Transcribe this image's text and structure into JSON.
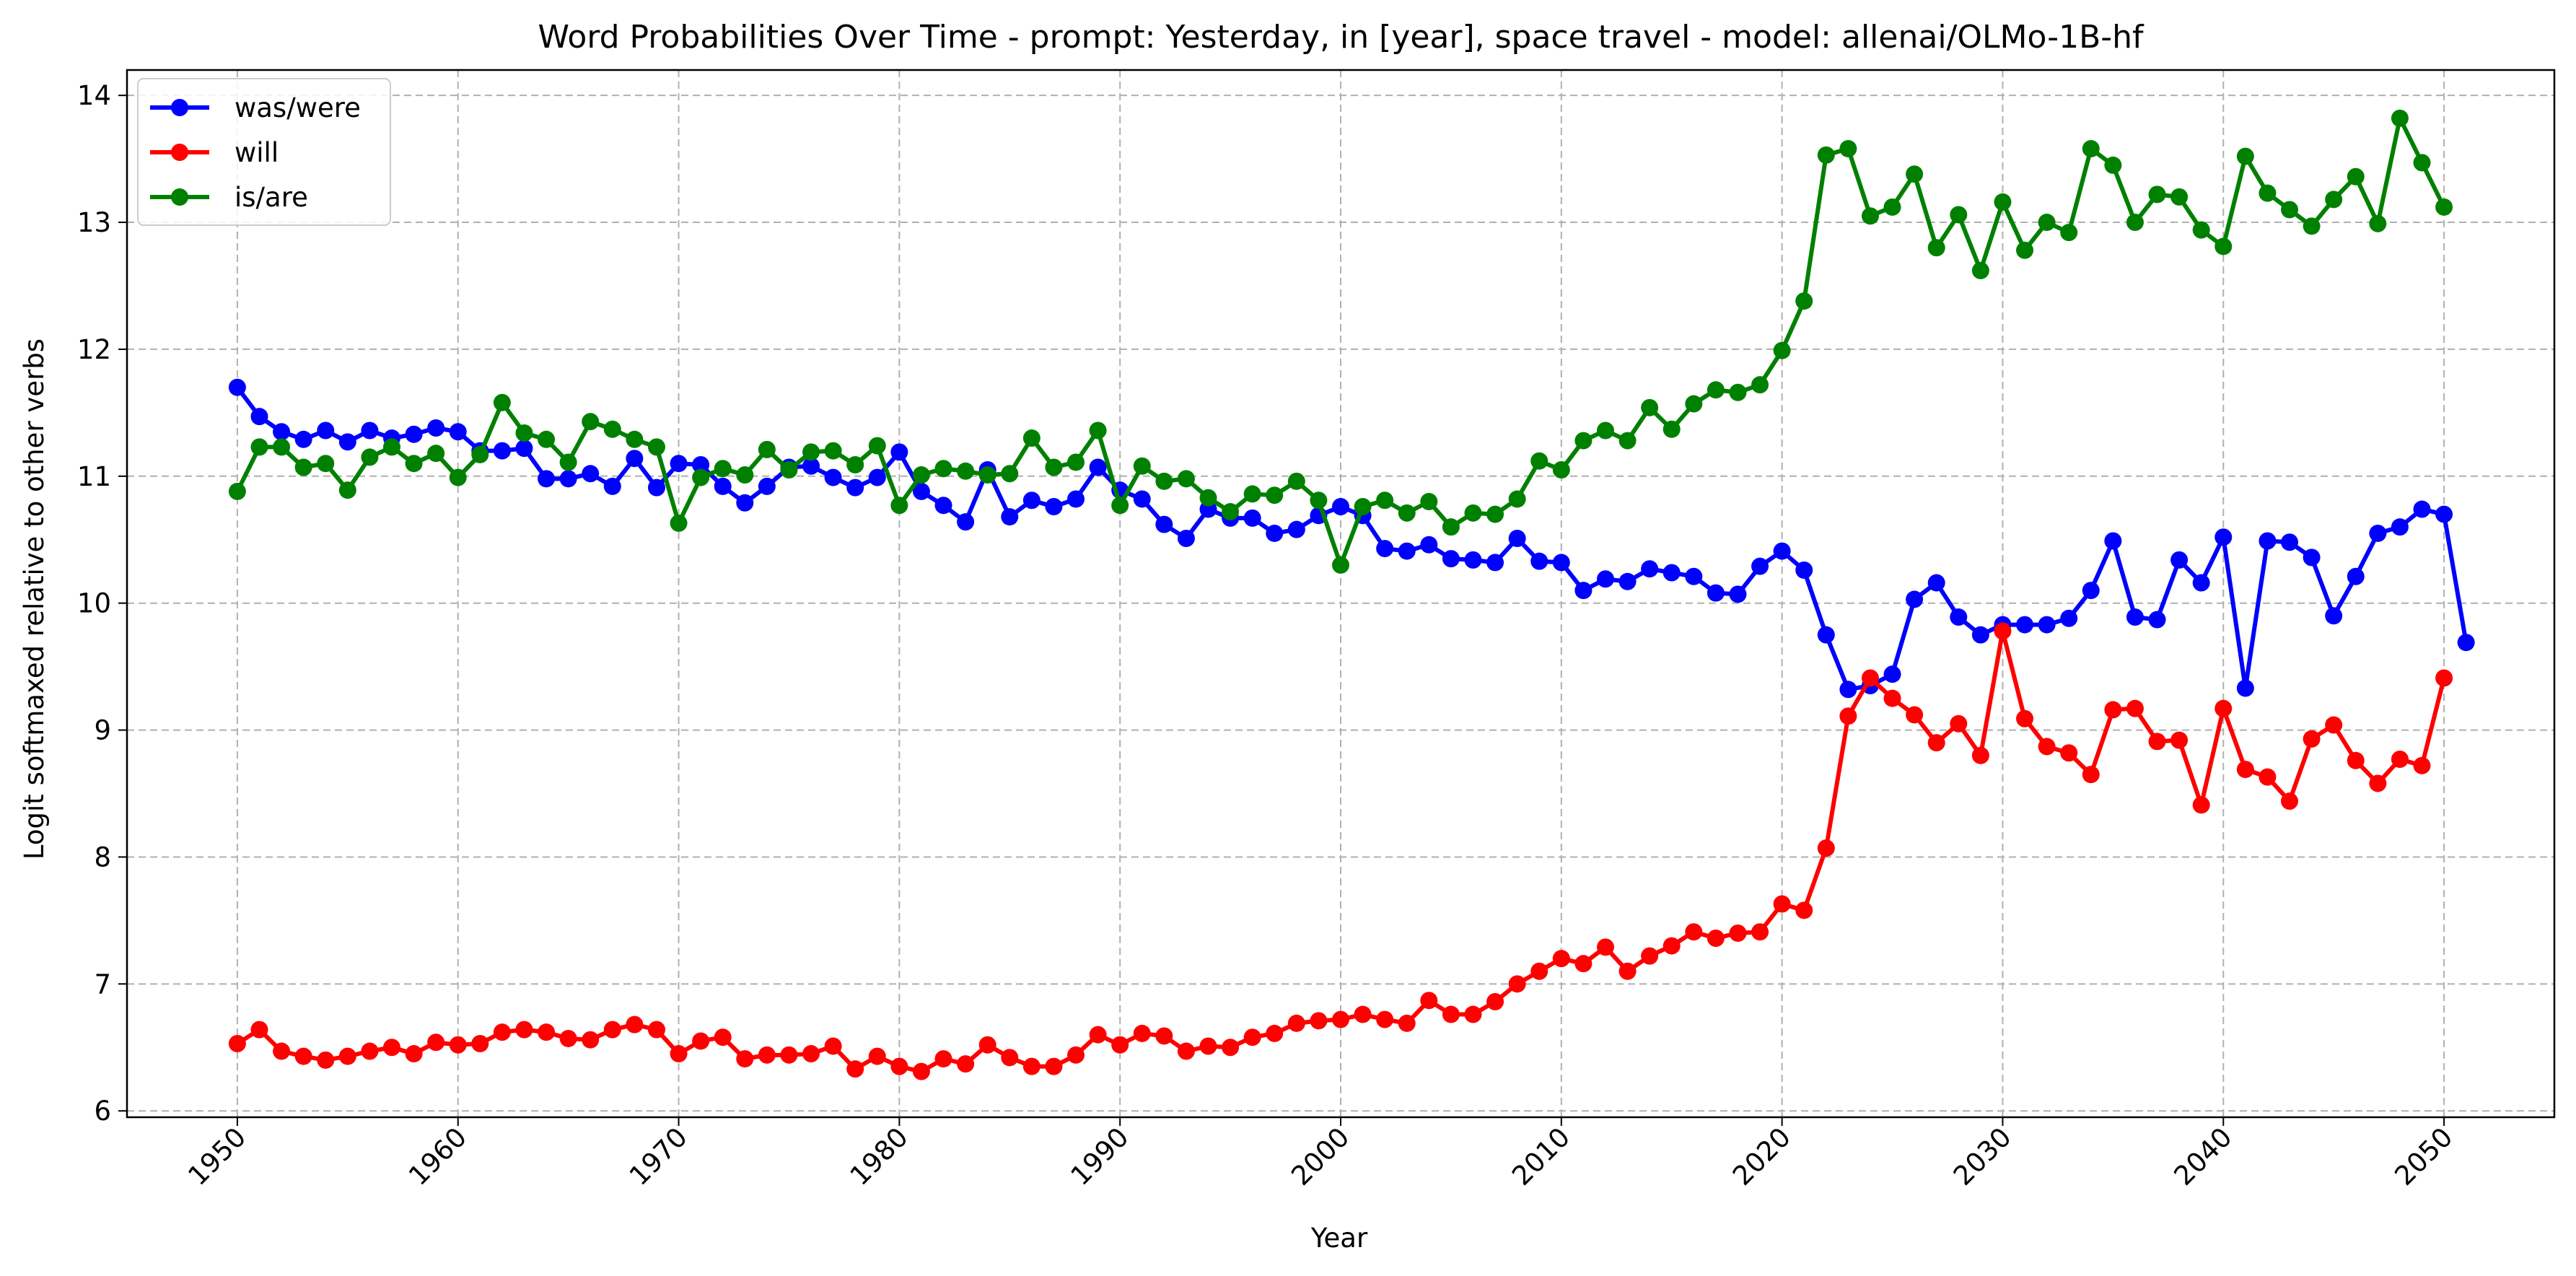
{
  "chart_data": {
    "type": "line",
    "title": "Word Probabilities Over Time - prompt: Yesterday, in [year], space travel - model: allenai/OLMo-1B-hf",
    "xlabel": "Year",
    "ylabel": "Logit softmaxed relative to other verbs",
    "xlim": [
      1945,
      2055
    ],
    "ylim": [
      5.95,
      14.2
    ],
    "xticks": [
      1950,
      1960,
      1970,
      1980,
      1990,
      2000,
      2010,
      2020,
      2030,
      2040,
      2050
    ],
    "yticks": [
      6,
      7,
      8,
      9,
      10,
      11,
      12,
      13,
      14
    ],
    "grid": true,
    "legend": "top-left",
    "x_start": 1950,
    "series": [
      {
        "name": "was/were",
        "color": "#0000ff",
        "values": [
          11.7,
          11.47,
          11.35,
          11.29,
          11.36,
          11.27,
          11.36,
          11.3,
          11.33,
          11.38,
          11.35,
          11.2,
          11.2,
          11.22,
          10.98,
          10.98,
          11.02,
          10.92,
          11.14,
          10.91,
          11.1,
          11.09,
          10.92,
          10.79,
          10.92,
          11.07,
          11.08,
          10.99,
          10.91,
          10.99,
          11.19,
          10.88,
          10.77,
          10.64,
          11.05,
          10.68,
          10.81,
          10.76,
          10.82,
          11.07,
          10.89,
          10.82,
          10.62,
          10.51,
          10.74,
          10.67,
          10.67,
          10.55,
          10.58,
          10.69,
          10.76,
          10.69,
          10.43,
          10.41,
          10.46,
          10.35,
          10.34,
          10.32,
          10.51,
          10.33,
          10.32,
          10.1,
          10.19,
          10.17,
          10.27,
          10.24,
          10.21,
          10.08,
          10.07,
          10.29,
          10.41,
          10.26,
          9.75,
          9.32,
          9.35,
          9.44,
          10.03,
          10.16,
          9.89,
          9.75,
          9.83,
          9.83,
          9.83,
          9.88,
          10.1,
          10.49,
          9.89,
          9.87,
          10.34,
          10.16,
          10.52,
          9.33,
          10.49,
          10.48,
          10.36,
          9.9,
          10.21,
          10.55,
          10.6,
          10.74,
          10.7,
          9.69
        ]
      },
      {
        "name": "will",
        "color": "#ff0000",
        "values": [
          6.53,
          6.64,
          6.47,
          6.43,
          6.4,
          6.43,
          6.47,
          6.5,
          6.45,
          6.54,
          6.52,
          6.53,
          6.62,
          6.64,
          6.62,
          6.57,
          6.56,
          6.64,
          6.68,
          6.64,
          6.45,
          6.55,
          6.58,
          6.41,
          6.44,
          6.44,
          6.45,
          6.51,
          6.33,
          6.43,
          6.35,
          6.31,
          6.41,
          6.37,
          6.52,
          6.42,
          6.35,
          6.35,
          6.44,
          6.6,
          6.52,
          6.61,
          6.59,
          6.47,
          6.51,
          6.5,
          6.58,
          6.61,
          6.69,
          6.71,
          6.72,
          6.76,
          6.72,
          6.69,
          6.87,
          6.76,
          6.76,
          6.86,
          7.0,
          7.1,
          7.2,
          7.16,
          7.29,
          7.1,
          7.22,
          7.3,
          7.41,
          7.36,
          7.4,
          7.41,
          7.63,
          7.58,
          8.07,
          9.11,
          9.41,
          9.25,
          9.12,
          8.9,
          9.05,
          8.8,
          9.78,
          9.09,
          8.87,
          8.82,
          8.65,
          9.16,
          9.17,
          8.91,
          8.92,
          8.41,
          9.17,
          8.69,
          8.63,
          8.44,
          8.93,
          9.04,
          8.76,
          8.58,
          8.77,
          8.72,
          9.41
        ]
      },
      {
        "name": "is/are",
        "color": "#008000",
        "values": [
          10.88,
          11.23,
          11.23,
          11.07,
          11.1,
          10.89,
          11.15,
          11.23,
          11.1,
          11.18,
          10.99,
          11.17,
          11.58,
          11.34,
          11.29,
          11.11,
          11.43,
          11.37,
          11.29,
          11.23,
          10.63,
          10.99,
          11.06,
          11.01,
          11.21,
          11.05,
          11.19,
          11.2,
          11.09,
          11.24,
          10.77,
          11.01,
          11.06,
          11.04,
          11.01,
          11.02,
          11.3,
          11.07,
          11.11,
          11.36,
          10.77,
          11.08,
          10.96,
          10.98,
          10.83,
          10.72,
          10.86,
          10.85,
          10.96,
          10.81,
          10.3,
          10.76,
          10.81,
          10.71,
          10.8,
          10.6,
          10.71,
          10.7,
          10.82,
          11.12,
          11.05,
          11.28,
          11.36,
          11.28,
          11.54,
          11.37,
          11.57,
          11.68,
          11.66,
          11.72,
          11.99,
          12.38,
          13.53,
          13.58,
          13.05,
          13.12,
          13.38,
          12.8,
          13.06,
          12.62,
          13.16,
          12.78,
          13.0,
          12.92,
          13.58,
          13.45,
          13.0,
          13.22,
          13.2,
          12.94,
          12.81,
          13.52,
          13.23,
          13.1,
          12.97,
          13.18,
          13.36,
          12.99,
          13.82,
          13.47,
          13.12
        ]
      }
    ]
  }
}
